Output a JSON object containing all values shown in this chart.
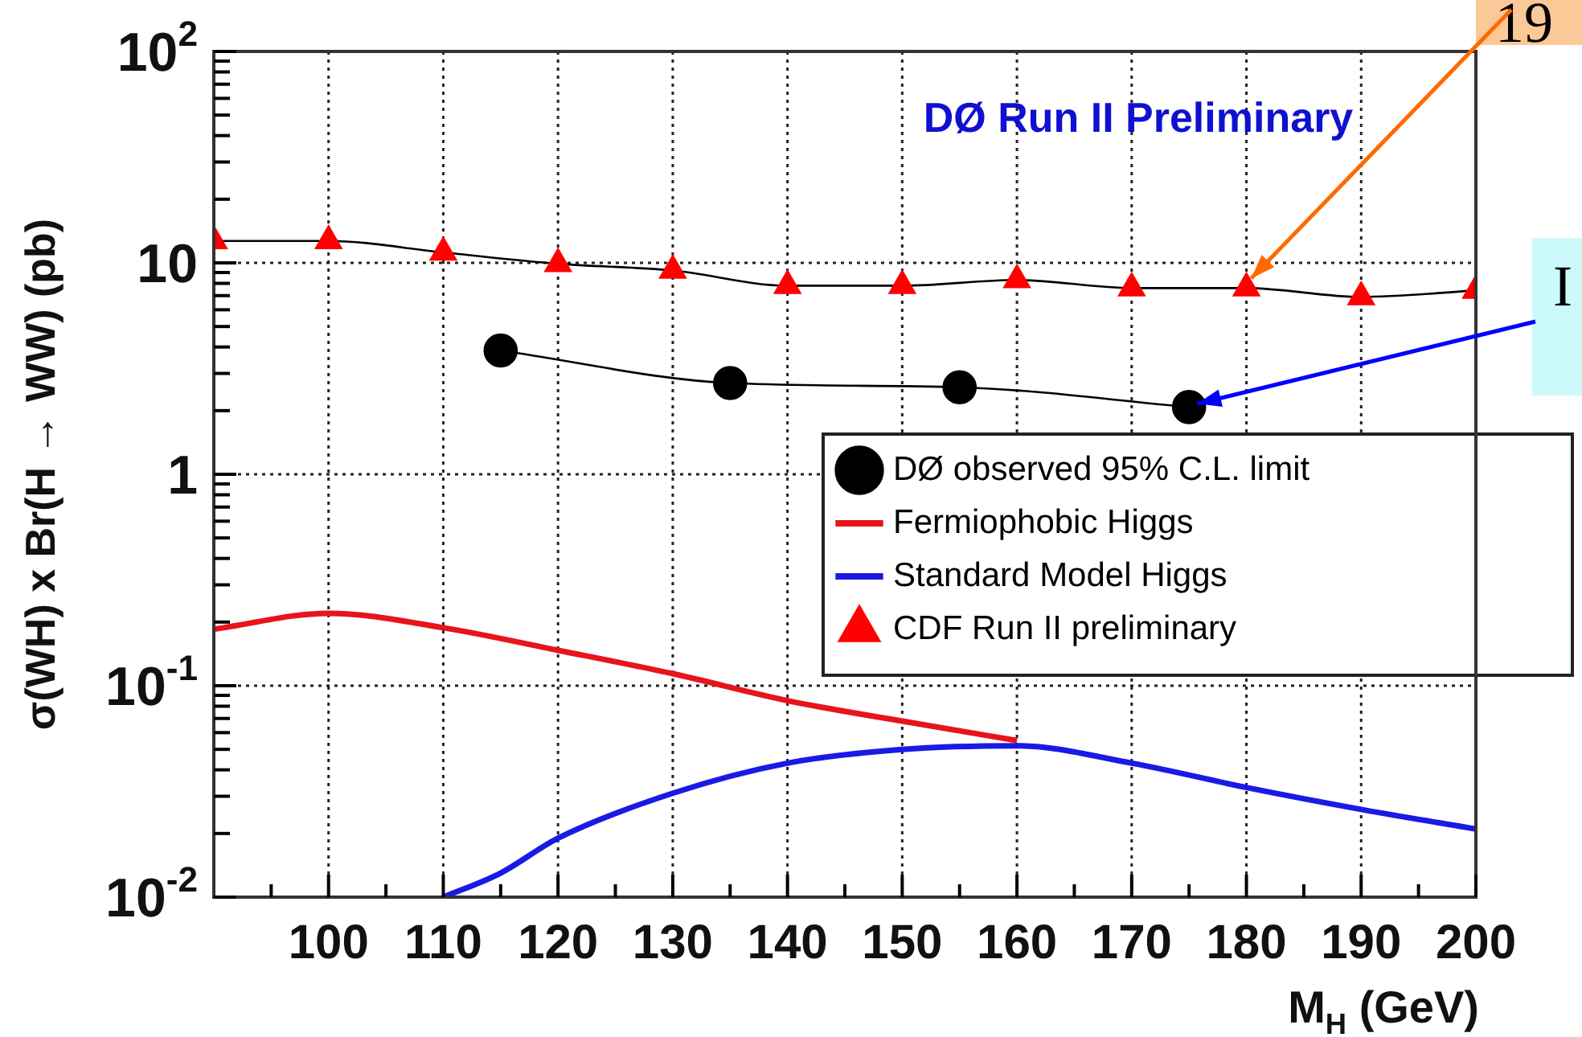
{
  "chart_data": {
    "type": "line",
    "title": "DØ Run II Preliminary",
    "xlabel": "M$_{H}$ (GeV)",
    "ylabel": "σ(WH) x Br(H → WW) (pb)",
    "log": "y",
    "grid": true,
    "legend": "right",
    "xlim": [
      90,
      200
    ],
    "xticks": [
      {
        "value": 95,
        "label": null
      },
      100,
      {
        "value": 105,
        "label": null
      },
      110,
      {
        "value": 115,
        "label": null
      },
      120,
      {
        "value": 125,
        "label": null
      },
      130,
      {
        "value": 135,
        "label": null
      },
      140,
      {
        "value": 145,
        "label": null
      },
      150,
      {
        "value": 155,
        "label": null
      },
      160,
      {
        "value": 165,
        "label": null
      },
      170,
      {
        "value": 175,
        "label": null
      },
      180,
      {
        "value": 185,
        "label": null
      },
      190,
      {
        "value": 195,
        "label": null
      },
      200
    ],
    "ylim": [
      0.01,
      100
    ],
    "yticks": [
      {
        "value": 0.01,
        "label": "10$^{-2}$"
      },
      {
        "value": 0.02,
        "label": null
      },
      {
        "value": 0.03,
        "label": null
      },
      {
        "value": 0.04,
        "label": null
      },
      {
        "value": 0.05,
        "label": null
      },
      {
        "value": 0.06,
        "label": null
      },
      {
        "value": 0.07,
        "label": null
      },
      {
        "value": 0.08,
        "label": null
      },
      {
        "value": 0.09,
        "label": null
      },
      {
        "value": 0.1,
        "label": "10$^{-1}$"
      },
      {
        "value": 0.2,
        "label": null
      },
      {
        "value": 0.3,
        "label": null
      },
      {
        "value": 0.4,
        "label": null
      },
      {
        "value": 0.5,
        "label": null
      },
      {
        "value": 0.6,
        "label": null
      },
      {
        "value": 0.7,
        "label": null
      },
      {
        "value": 0.8,
        "label": null
      },
      {
        "value": 0.9,
        "label": null
      },
      1,
      {
        "value": 2,
        "label": null
      },
      {
        "value": 3,
        "label": null
      },
      {
        "value": 4,
        "label": null
      },
      {
        "value": 5,
        "label": null
      },
      {
        "value": 6,
        "label": null
      },
      {
        "value": 7,
        "label": null
      },
      {
        "value": 8,
        "label": null
      },
      {
        "value": 9,
        "label": null
      },
      10,
      {
        "value": 20,
        "label": null
      },
      {
        "value": 30,
        "label": null
      },
      {
        "value": 40,
        "label": null
      },
      {
        "value": 50,
        "label": null
      },
      {
        "value": 60,
        "label": null
      },
      {
        "value": 70,
        "label": null
      },
      {
        "value": 80,
        "label": null
      },
      {
        "value": 90,
        "label": null
      },
      {
        "value": 100,
        "label": "10$^{2}$"
      }
    ],
    "series": [
      {
        "name": "DØ observed 95% C.L. limit",
        "color": "#000000",
        "marker": "circle",
        "x": [
          115,
          135,
          155,
          175
        ],
        "values": [
          3.85,
          2.7,
          2.58,
          2.08
        ]
      },
      {
        "name": "Fermiophobic Higgs",
        "color": "#e8141c",
        "marker": "none",
        "x": [
          90,
          100,
          110,
          120,
          130,
          140,
          150,
          160
        ],
        "values": [
          0.185,
          0.22,
          0.188,
          0.147,
          0.114,
          0.085,
          0.068,
          0.055
        ]
      },
      {
        "name": "Standard Model Higgs",
        "color": "#1a1ae6",
        "marker": "none",
        "x": [
          110,
          115,
          120,
          130,
          140,
          150,
          160,
          170,
          180,
          190,
          200
        ],
        "values": [
          0.01,
          0.013,
          0.019,
          0.031,
          0.043,
          0.05,
          0.052,
          0.043,
          0.033,
          0.026,
          0.021
        ]
      },
      {
        "name": "CDF Run II preliminary",
        "color": "#ff0000",
        "marker": "triangle",
        "x": [
          90,
          100,
          110,
          120,
          130,
          140,
          150,
          160,
          170,
          180,
          190,
          200
        ],
        "values": [
          12.7,
          12.7,
          11.2,
          9.9,
          9.2,
          7.8,
          7.8,
          8.3,
          7.6,
          7.6,
          6.9,
          7.4
        ]
      }
    ],
    "annotations": [
      {
        "text": "19",
        "x": 180,
        "y": 7.6
      },
      {
        "text": "I",
        "x": 175,
        "y": 2.08
      }
    ]
  }
}
